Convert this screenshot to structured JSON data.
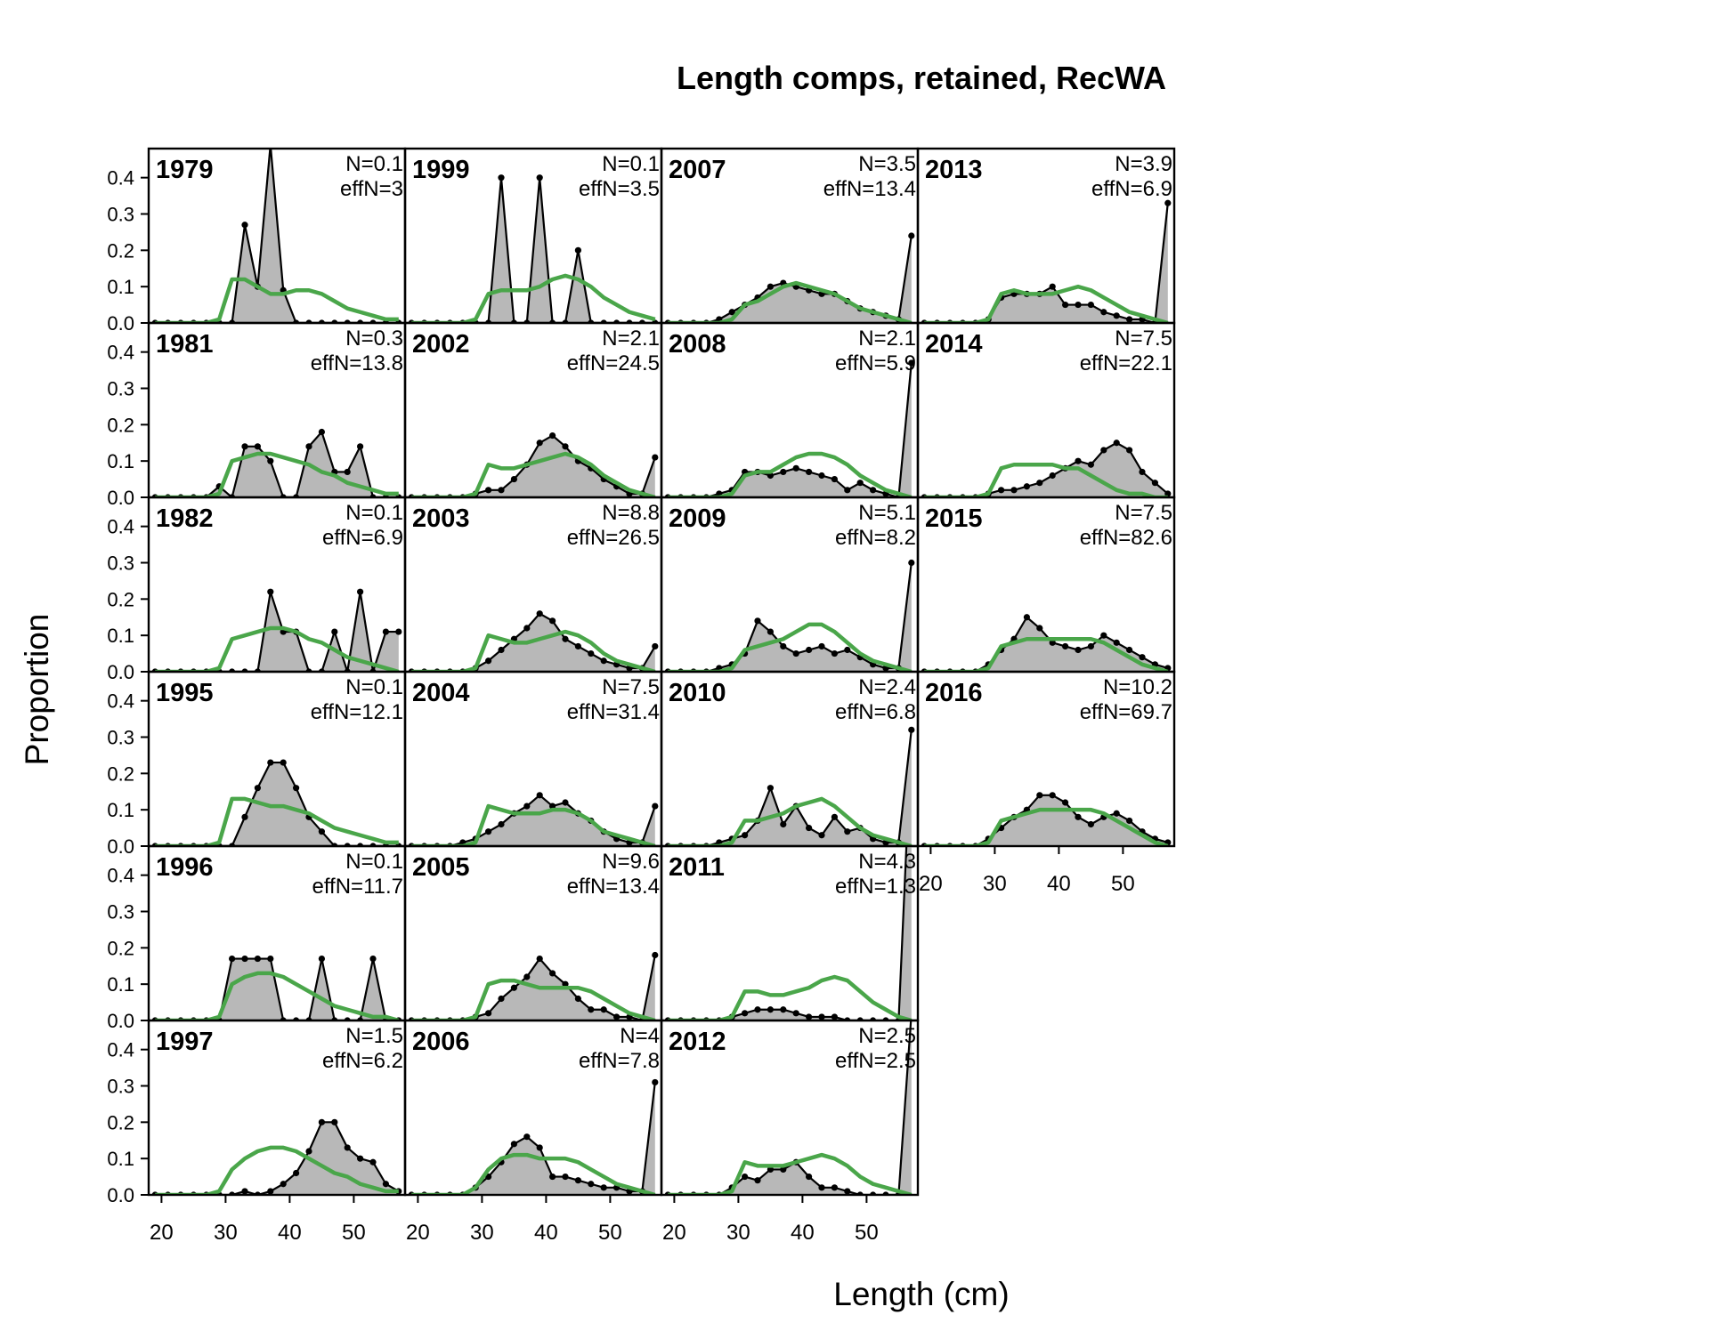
{
  "chart_data": {
    "type": "line",
    "title": "Length comps, retained, RecWA",
    "xlabel": "Length (cm)",
    "ylabel": "Proportion",
    "xlim": [
      18,
      58
    ],
    "ylim": [
      0,
      0.48
    ],
    "xticks": [
      20,
      30,
      40,
      50
    ],
    "yticks": [
      0.0,
      0.1,
      0.2,
      0.3,
      0.4
    ],
    "ytick_labels": [
      "0.0",
      "0.1",
      "0.2",
      "0.3",
      "0.4"
    ],
    "layout": "columns top-to-bottom",
    "colors": {
      "observed_fill": "#b8b8b8",
      "observed_line": "#000000",
      "expected_line": "#4aa64a"
    },
    "panels": [
      {
        "year": "1979",
        "n_label": "N=0.1",
        "effn_label": "effN=3",
        "obs": [
          0,
          0,
          0,
          0,
          0,
          0,
          0,
          0.27,
          0.1,
          0.49,
          0.09,
          0,
          0,
          0,
          0,
          0,
          0,
          0,
          0,
          0
        ],
        "exp": [
          0,
          0,
          0,
          0,
          0,
          0.01,
          0.12,
          0.12,
          0.1,
          0.08,
          0.08,
          0.09,
          0.09,
          0.08,
          0.06,
          0.04,
          0.03,
          0.02,
          0.01,
          0.01
        ]
      },
      {
        "year": "1981",
        "n_label": "N=0.3",
        "effn_label": "effN=13.8",
        "obs": [
          0,
          0,
          0,
          0,
          0,
          0.03,
          0,
          0.14,
          0.14,
          0.1,
          0,
          0,
          0.14,
          0.18,
          0.07,
          0.07,
          0.14,
          0,
          0,
          0
        ],
        "exp": [
          0,
          0,
          0,
          0,
          0,
          0.01,
          0.1,
          0.11,
          0.12,
          0.12,
          0.11,
          0.1,
          0.09,
          0.07,
          0.06,
          0.04,
          0.03,
          0.02,
          0.01,
          0.01
        ]
      },
      {
        "year": "1982",
        "n_label": "N=0.1",
        "effn_label": "effN=6.9",
        "obs": [
          0,
          0,
          0,
          0,
          0,
          0,
          0,
          0,
          0,
          0.22,
          0.11,
          0.11,
          0,
          0,
          0.11,
          0,
          0.22,
          0,
          0.11,
          0.11
        ],
        "exp": [
          0,
          0,
          0,
          0,
          0,
          0.01,
          0.09,
          0.1,
          0.11,
          0.12,
          0.12,
          0.11,
          0.09,
          0.08,
          0.06,
          0.04,
          0.03,
          0.02,
          0.01,
          0
        ]
      },
      {
        "year": "1995",
        "n_label": "N=0.1",
        "effn_label": "effN=12.1",
        "obs": [
          0,
          0,
          0,
          0,
          0,
          0,
          0,
          0.08,
          0.16,
          0.23,
          0.23,
          0.16,
          0.08,
          0.04,
          0,
          0,
          0,
          0,
          0,
          0
        ],
        "exp": [
          0,
          0,
          0,
          0,
          0,
          0.01,
          0.13,
          0.13,
          0.12,
          0.11,
          0.11,
          0.1,
          0.09,
          0.07,
          0.05,
          0.04,
          0.03,
          0.02,
          0.01,
          0.01
        ]
      },
      {
        "year": "1996",
        "n_label": "N=0.1",
        "effn_label": "effN=11.7",
        "obs": [
          0,
          0,
          0,
          0,
          0,
          0,
          0.17,
          0.17,
          0.17,
          0.17,
          0,
          0,
          0,
          0.17,
          0,
          0,
          0,
          0.17,
          0,
          0
        ],
        "exp": [
          0,
          0,
          0,
          0,
          0,
          0.01,
          0.1,
          0.12,
          0.13,
          0.13,
          0.12,
          0.1,
          0.08,
          0.06,
          0.04,
          0.03,
          0.02,
          0.01,
          0.01,
          0
        ]
      },
      {
        "year": "1997",
        "n_label": "N=1.5",
        "effn_label": "effN=6.2",
        "obs": [
          0,
          0,
          0,
          0,
          0,
          0,
          0,
          0.01,
          0,
          0.01,
          0.03,
          0.06,
          0.12,
          0.2,
          0.2,
          0.13,
          0.1,
          0.09,
          0.03,
          0.01
        ],
        "exp": [
          0,
          0,
          0,
          0,
          0,
          0.01,
          0.07,
          0.1,
          0.12,
          0.13,
          0.13,
          0.12,
          0.1,
          0.08,
          0.06,
          0.05,
          0.03,
          0.02,
          0.01,
          0.01
        ]
      },
      {
        "year": "1999",
        "n_label": "N=0.1",
        "effn_label": "effN=3.5",
        "obs": [
          0,
          0,
          0,
          0,
          0,
          0,
          0,
          0.4,
          0,
          0,
          0.4,
          0,
          0,
          0.2,
          0,
          0,
          0,
          0,
          0,
          0
        ],
        "exp": [
          0,
          0,
          0,
          0,
          0,
          0.01,
          0.08,
          0.09,
          0.09,
          0.09,
          0.1,
          0.12,
          0.13,
          0.12,
          0.1,
          0.07,
          0.05,
          0.03,
          0.02,
          0.01
        ]
      },
      {
        "year": "2002",
        "n_label": "N=2.1",
        "effn_label": "effN=24.5",
        "obs": [
          0,
          0,
          0,
          0,
          0,
          0.01,
          0.02,
          0.02,
          0.05,
          0.09,
          0.15,
          0.17,
          0.14,
          0.1,
          0.08,
          0.05,
          0.03,
          0.01,
          0.01,
          0.11
        ],
        "exp": [
          0,
          0,
          0,
          0,
          0,
          0.01,
          0.09,
          0.08,
          0.08,
          0.09,
          0.1,
          0.11,
          0.12,
          0.11,
          0.09,
          0.06,
          0.04,
          0.02,
          0.01,
          0
        ]
      },
      {
        "year": "2003",
        "n_label": "N=8.8",
        "effn_label": "effN=26.5",
        "obs": [
          0,
          0,
          0,
          0,
          0,
          0.01,
          0.03,
          0.06,
          0.09,
          0.12,
          0.16,
          0.14,
          0.09,
          0.07,
          0.05,
          0.03,
          0.02,
          0.01,
          0.01,
          0.07
        ],
        "exp": [
          0,
          0,
          0,
          0,
          0,
          0.01,
          0.1,
          0.09,
          0.08,
          0.08,
          0.09,
          0.1,
          0.11,
          0.1,
          0.08,
          0.05,
          0.03,
          0.02,
          0.01,
          0
        ]
      },
      {
        "year": "2004",
        "n_label": "N=7.5",
        "effn_label": "effN=31.4",
        "obs": [
          0,
          0,
          0,
          0,
          0.01,
          0.02,
          0.04,
          0.06,
          0.09,
          0.11,
          0.14,
          0.11,
          0.12,
          0.09,
          0.07,
          0.04,
          0.02,
          0.01,
          0.01,
          0.11
        ],
        "exp": [
          0,
          0,
          0,
          0,
          0,
          0.01,
          0.11,
          0.1,
          0.09,
          0.09,
          0.09,
          0.1,
          0.1,
          0.09,
          0.07,
          0.04,
          0.03,
          0.02,
          0.01,
          0
        ]
      },
      {
        "year": "2005",
        "n_label": "N=9.6",
        "effn_label": "effN=13.4",
        "obs": [
          0,
          0,
          0,
          0,
          0,
          0.01,
          0.02,
          0.06,
          0.09,
          0.12,
          0.17,
          0.13,
          0.1,
          0.06,
          0.03,
          0.03,
          0.01,
          0.01,
          0,
          0.18
        ],
        "exp": [
          0,
          0,
          0,
          0,
          0,
          0.01,
          0.1,
          0.11,
          0.11,
          0.1,
          0.09,
          0.09,
          0.09,
          0.09,
          0.08,
          0.06,
          0.04,
          0.02,
          0.01,
          0
        ]
      },
      {
        "year": "2006",
        "n_label": "N=4",
        "effn_label": "effN=7.8",
        "obs": [
          0,
          0,
          0,
          0,
          0,
          0.02,
          0.05,
          0.09,
          0.14,
          0.16,
          0.13,
          0.05,
          0.05,
          0.04,
          0.03,
          0.02,
          0.02,
          0.01,
          0.01,
          0.31
        ],
        "exp": [
          0,
          0,
          0,
          0,
          0,
          0.02,
          0.07,
          0.1,
          0.11,
          0.11,
          0.1,
          0.1,
          0.1,
          0.09,
          0.07,
          0.05,
          0.03,
          0.02,
          0.01,
          0
        ]
      },
      {
        "year": "2007",
        "n_label": "N=3.5",
        "effn_label": "effN=13.4",
        "obs": [
          0,
          0,
          0,
          0,
          0.01,
          0.03,
          0.05,
          0.07,
          0.1,
          0.11,
          0.1,
          0.09,
          0.08,
          0.08,
          0.06,
          0.04,
          0.03,
          0.02,
          0.01,
          0.24
        ],
        "exp": [
          0,
          0,
          0,
          0,
          0,
          0.01,
          0.05,
          0.06,
          0.08,
          0.1,
          0.11,
          0.1,
          0.09,
          0.08,
          0.06,
          0.04,
          0.03,
          0.02,
          0.01,
          0
        ]
      },
      {
        "year": "2008",
        "n_label": "N=2.1",
        "effn_label": "effN=5.9",
        "obs": [
          0,
          0,
          0,
          0,
          0.01,
          0.02,
          0.07,
          0.07,
          0.06,
          0.07,
          0.08,
          0.07,
          0.06,
          0.05,
          0.02,
          0.04,
          0.02,
          0.01,
          0,
          0.37
        ],
        "exp": [
          0,
          0,
          0,
          0,
          0,
          0.01,
          0.06,
          0.07,
          0.07,
          0.09,
          0.11,
          0.12,
          0.12,
          0.11,
          0.09,
          0.06,
          0.04,
          0.02,
          0.01,
          0
        ]
      },
      {
        "year": "2009",
        "n_label": "N=5.1",
        "effn_label": "effN=8.2",
        "obs": [
          0,
          0,
          0,
          0,
          0.01,
          0.02,
          0.05,
          0.14,
          0.11,
          0.07,
          0.05,
          0.06,
          0.07,
          0.05,
          0.06,
          0.04,
          0.02,
          0.01,
          0.01,
          0.3
        ],
        "exp": [
          0,
          0,
          0,
          0,
          0,
          0.01,
          0.06,
          0.07,
          0.08,
          0.09,
          0.11,
          0.13,
          0.13,
          0.11,
          0.08,
          0.05,
          0.03,
          0.02,
          0.01,
          0
        ]
      },
      {
        "year": "2010",
        "n_label": "N=2.4",
        "effn_label": "effN=6.8",
        "obs": [
          0,
          0,
          0,
          0,
          0.01,
          0.02,
          0.03,
          0.07,
          0.16,
          0.06,
          0.11,
          0.05,
          0.03,
          0.08,
          0.04,
          0.05,
          0.02,
          0.01,
          0.01,
          0.32
        ],
        "exp": [
          0,
          0,
          0,
          0,
          0,
          0.01,
          0.07,
          0.07,
          0.08,
          0.09,
          0.11,
          0.12,
          0.13,
          0.11,
          0.08,
          0.05,
          0.03,
          0.02,
          0.01,
          0
        ]
      },
      {
        "year": "2011",
        "n_label": "N=4.3",
        "effn_label": "effN=1.3",
        "obs": [
          0,
          0,
          0,
          0,
          0,
          0.01,
          0.02,
          0.03,
          0.03,
          0.03,
          0.02,
          0.01,
          0.01,
          0.01,
          0,
          0,
          0,
          0,
          0,
          0.79
        ],
        "exp": [
          0,
          0,
          0,
          0,
          0,
          0.01,
          0.08,
          0.08,
          0.07,
          0.07,
          0.08,
          0.09,
          0.11,
          0.12,
          0.11,
          0.08,
          0.05,
          0.03,
          0.01,
          0
        ]
      },
      {
        "year": "2012",
        "n_label": "N=2.5",
        "effn_label": "effN=2.5",
        "obs": [
          0,
          0,
          0,
          0,
          0,
          0.02,
          0.05,
          0.04,
          0.07,
          0.07,
          0.09,
          0.05,
          0.02,
          0.02,
          0.01,
          0,
          0,
          0,
          0,
          0.5
        ],
        "exp": [
          0,
          0,
          0,
          0,
          0,
          0.01,
          0.09,
          0.08,
          0.08,
          0.08,
          0.09,
          0.1,
          0.11,
          0.1,
          0.08,
          0.05,
          0.03,
          0.02,
          0.01,
          0
        ]
      },
      {
        "year": "2013",
        "n_label": "N=3.9",
        "effn_label": "effN=6.9",
        "obs": [
          0,
          0,
          0,
          0,
          0,
          0.01,
          0.07,
          0.08,
          0.08,
          0.08,
          0.1,
          0.05,
          0.05,
          0.05,
          0.03,
          0.02,
          0.01,
          0.01,
          0,
          0.33
        ],
        "exp": [
          0,
          0,
          0,
          0,
          0,
          0.01,
          0.08,
          0.09,
          0.08,
          0.08,
          0.08,
          0.09,
          0.1,
          0.09,
          0.07,
          0.05,
          0.03,
          0.02,
          0.01,
          0
        ]
      },
      {
        "year": "2014",
        "n_label": "N=7.5",
        "effn_label": "effN=22.1",
        "obs": [
          0,
          0,
          0,
          0,
          0,
          0.01,
          0.02,
          0.02,
          0.03,
          0.04,
          0.06,
          0.08,
          0.1,
          0.09,
          0.13,
          0.15,
          0.13,
          0.07,
          0.04,
          0.01
        ],
        "exp": [
          0,
          0,
          0,
          0,
          0,
          0.01,
          0.08,
          0.09,
          0.09,
          0.09,
          0.09,
          0.08,
          0.08,
          0.06,
          0.04,
          0.02,
          0.01,
          0.01,
          0,
          0
        ]
      },
      {
        "year": "2015",
        "n_label": "N=7.5",
        "effn_label": "effN=82.6",
        "obs": [
          0,
          0,
          0,
          0,
          0,
          0.02,
          0.06,
          0.09,
          0.15,
          0.12,
          0.08,
          0.07,
          0.06,
          0.07,
          0.1,
          0.08,
          0.06,
          0.04,
          0.02,
          0.01
        ],
        "exp": [
          0,
          0,
          0,
          0,
          0,
          0.01,
          0.07,
          0.08,
          0.09,
          0.09,
          0.09,
          0.09,
          0.09,
          0.09,
          0.08,
          0.06,
          0.04,
          0.02,
          0.01,
          0
        ]
      },
      {
        "year": "2016",
        "n_label": "N=10.2",
        "effn_label": "effN=69.7",
        "obs": [
          0,
          0,
          0,
          0,
          0,
          0.02,
          0.05,
          0.08,
          0.1,
          0.14,
          0.14,
          0.12,
          0.08,
          0.06,
          0.08,
          0.09,
          0.07,
          0.04,
          0.02,
          0.01
        ],
        "exp": [
          0,
          0,
          0,
          0,
          0,
          0.01,
          0.07,
          0.08,
          0.09,
          0.1,
          0.1,
          0.1,
          0.1,
          0.1,
          0.09,
          0.07,
          0.05,
          0.03,
          0.01,
          0
        ]
      }
    ]
  }
}
